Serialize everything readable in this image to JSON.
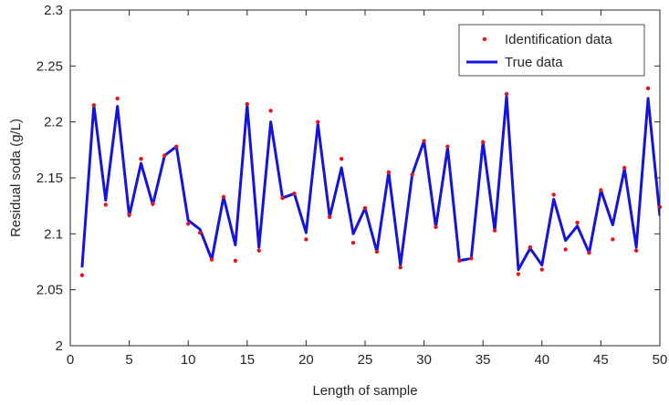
{
  "chart_data": {
    "type": "line",
    "title": "",
    "xlabel": "Length of sample",
    "ylabel": "Residual soda  (g/L)",
    "xlim": [
      0,
      50
    ],
    "ylim": [
      2,
      2.3
    ],
    "xticks": [
      0,
      5,
      10,
      15,
      20,
      25,
      30,
      35,
      40,
      45,
      50
    ],
    "xtick_labels": [
      "0",
      "5",
      "10",
      "15",
      "20",
      "25",
      "30",
      "35",
      "40",
      "45",
      "50"
    ],
    "yticks": [
      2,
      2.05,
      2.1,
      2.15,
      2.2,
      2.25,
      2.3
    ],
    "ytick_labels": [
      "2",
      "2.05",
      "2.1",
      "2.15",
      "2.2",
      "2.25",
      "2.3"
    ],
    "grid": false,
    "legend_position": "top-right",
    "x": [
      1,
      2,
      3,
      4,
      5,
      6,
      7,
      8,
      9,
      10,
      11,
      12,
      13,
      14,
      15,
      16,
      17,
      18,
      19,
      20,
      21,
      22,
      23,
      24,
      25,
      26,
      27,
      28,
      29,
      30,
      31,
      32,
      33,
      34,
      35,
      36,
      37,
      38,
      39,
      40,
      41,
      42,
      43,
      44,
      45,
      46,
      47,
      48,
      49,
      50
    ],
    "series": [
      {
        "name": "Identification data",
        "style": "scatter",
        "color": "#e8141a",
        "values": [
          2.063,
          2.215,
          2.126,
          2.221,
          2.117,
          2.167,
          2.127,
          2.17,
          2.178,
          2.109,
          2.101,
          2.077,
          2.133,
          2.076,
          2.216,
          2.085,
          2.21,
          2.132,
          2.136,
          2.095,
          2.2,
          2.115,
          2.167,
          2.092,
          2.123,
          2.084,
          2.155,
          2.07,
          2.153,
          2.183,
          2.106,
          2.178,
          2.076,
          2.078,
          2.182,
          2.103,
          2.225,
          2.064,
          2.088,
          2.068,
          2.135,
          2.086,
          2.11,
          2.083,
          2.139,
          2.095,
          2.159,
          2.085,
          2.23,
          2.124
        ]
      },
      {
        "name": "True data",
        "style": "line",
        "color": "#1414dc",
        "values": [
          2.07,
          2.215,
          2.13,
          2.214,
          2.116,
          2.163,
          2.126,
          2.17,
          2.178,
          2.112,
          2.104,
          2.077,
          2.133,
          2.09,
          2.215,
          2.088,
          2.2,
          2.132,
          2.136,
          2.101,
          2.198,
          2.115,
          2.159,
          2.1,
          2.123,
          2.084,
          2.155,
          2.072,
          2.153,
          2.183,
          2.106,
          2.177,
          2.076,
          2.078,
          2.182,
          2.103,
          2.223,
          2.068,
          2.087,
          2.072,
          2.131,
          2.094,
          2.107,
          2.083,
          2.139,
          2.108,
          2.158,
          2.088,
          2.221,
          2.116
        ]
      }
    ]
  }
}
